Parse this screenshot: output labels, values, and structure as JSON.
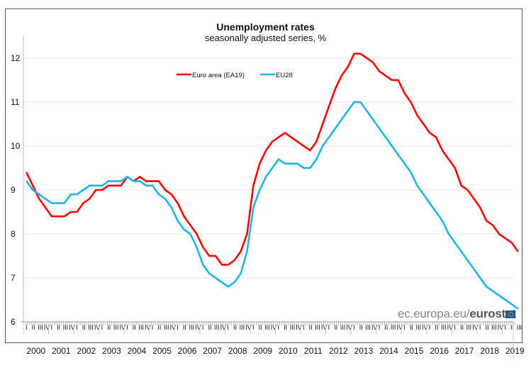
{
  "chart_data": {
    "type": "line",
    "title": "Unemployment rates",
    "subtitle": "seasonally adjusted series, %",
    "xlabel": "",
    "ylabel": "",
    "ylim": [
      6,
      12.5
    ],
    "yticks": [
      "6",
      "7",
      "8",
      "9",
      "10",
      "11",
      "12"
    ],
    "year_labels": [
      "2000",
      "2001",
      "2002",
      "2003",
      "2004",
      "2005",
      "2006",
      "2007",
      "2008",
      "2009",
      "2010",
      "2011",
      "2012",
      "2013",
      "2014",
      "2015",
      "2016",
      "2017",
      "2018",
      "2019"
    ],
    "quarter_labels": [
      "I",
      "II",
      "III",
      "IV"
    ],
    "grid": true,
    "legend_position": "top-left",
    "x_start": "2000-Q1",
    "x_step": "quarter",
    "series": [
      {
        "name": "Euro area (EA19)",
        "color": "#ff0000",
        "values": [
          9.4,
          9.1,
          8.8,
          8.6,
          8.4,
          8.4,
          8.4,
          8.5,
          8.5,
          8.7,
          8.8,
          9.0,
          9.0,
          9.1,
          9.1,
          9.1,
          9.3,
          9.2,
          9.3,
          9.2,
          9.2,
          9.2,
          9.0,
          8.9,
          8.7,
          8.4,
          8.2,
          8.0,
          7.7,
          7.5,
          7.5,
          7.3,
          7.3,
          7.4,
          7.6,
          8.0,
          9.1,
          9.6,
          9.9,
          10.1,
          10.2,
          10.3,
          10.2,
          10.1,
          10.0,
          9.9,
          10.1,
          10.5,
          10.9,
          11.3,
          11.6,
          11.8,
          12.1,
          12.1,
          12.0,
          11.9,
          11.7,
          11.6,
          11.5,
          11.5,
          11.2,
          11.0,
          10.7,
          10.5,
          10.3,
          10.2,
          9.9,
          9.7,
          9.5,
          9.1,
          9.0,
          8.8,
          8.6,
          8.3,
          8.2,
          8.0,
          7.9,
          7.8,
          7.6
        ]
      },
      {
        "name": "EU28",
        "color": "#1eb4eb",
        "values": [
          9.2,
          9.0,
          8.9,
          8.8,
          8.7,
          8.7,
          8.7,
          8.9,
          8.9,
          9.0,
          9.1,
          9.1,
          9.1,
          9.2,
          9.2,
          9.2,
          9.3,
          9.2,
          9.2,
          9.1,
          9.1,
          8.9,
          8.8,
          8.6,
          8.3,
          8.1,
          8.0,
          7.7,
          7.3,
          7.1,
          7.0,
          6.9,
          6.8,
          6.9,
          7.1,
          7.6,
          8.6,
          9.0,
          9.3,
          9.5,
          9.7,
          9.6,
          9.6,
          9.6,
          9.5,
          9.5,
          9.7,
          10.0,
          10.2,
          10.4,
          10.6,
          10.8,
          11.0,
          11.0,
          10.8,
          10.6,
          10.4,
          10.2,
          10.0,
          9.8,
          9.6,
          9.4,
          9.1,
          8.9,
          8.7,
          8.5,
          8.3,
          8.0,
          7.8,
          7.6,
          7.4,
          7.2,
          7.0,
          6.8,
          6.7,
          6.6,
          6.5,
          6.4,
          6.3
        ]
      }
    ]
  },
  "source": {
    "prefix": "ec.europa.eu/",
    "brand": "eurostat"
  }
}
